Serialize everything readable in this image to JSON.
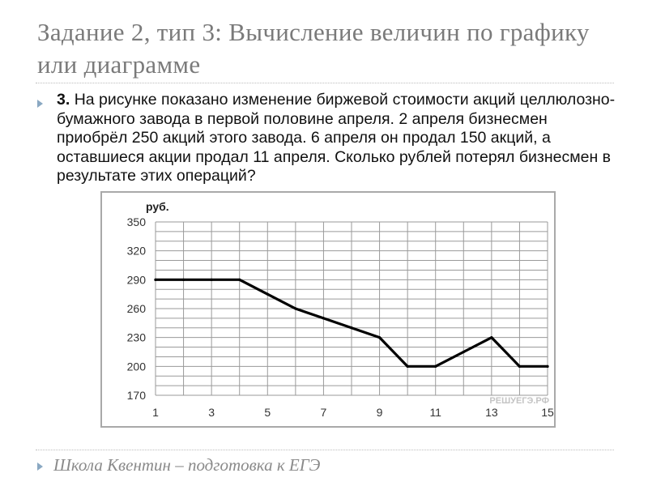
{
  "slide": {
    "title": "Задание 2, тип 3: Вычисление величин по графику или диаграмме",
    "task_number": "3.",
    "task_text": "На рисунке показано изменение биржевой стоимости акций целлюлозно-бумажного завода в первой половине апреля. 2 апреля бизнесмен приобрёл 250 акций этого завода. 6 апреля он продал 150 акций, а оставшиеся акции продал 11 апреля. Сколько рублей потерял бизнесмен в результате этих операций?",
    "footer": "Школа Квентин – подготовка к ЕГЭ"
  },
  "chart_data": {
    "type": "line",
    "ylabel": "руб.",
    "watermark": "РЕШУЕГЭ.РФ",
    "x": [
      1,
      2,
      3,
      4,
      5,
      6,
      7,
      8,
      9,
      10,
      11,
      12,
      13,
      14,
      15
    ],
    "values": [
      290,
      290,
      290,
      290,
      275,
      260,
      250,
      240,
      230,
      200,
      200,
      215,
      230,
      200,
      200
    ],
    "xlim": [
      1,
      15
    ],
    "ylim": [
      170,
      350
    ],
    "xticks": [
      1,
      3,
      5,
      7,
      9,
      11,
      13,
      15
    ],
    "yticks": [
      170,
      200,
      230,
      260,
      290,
      320,
      350
    ],
    "grid": true,
    "line_color": "#000000",
    "grid_color": "#9a9a9a"
  }
}
